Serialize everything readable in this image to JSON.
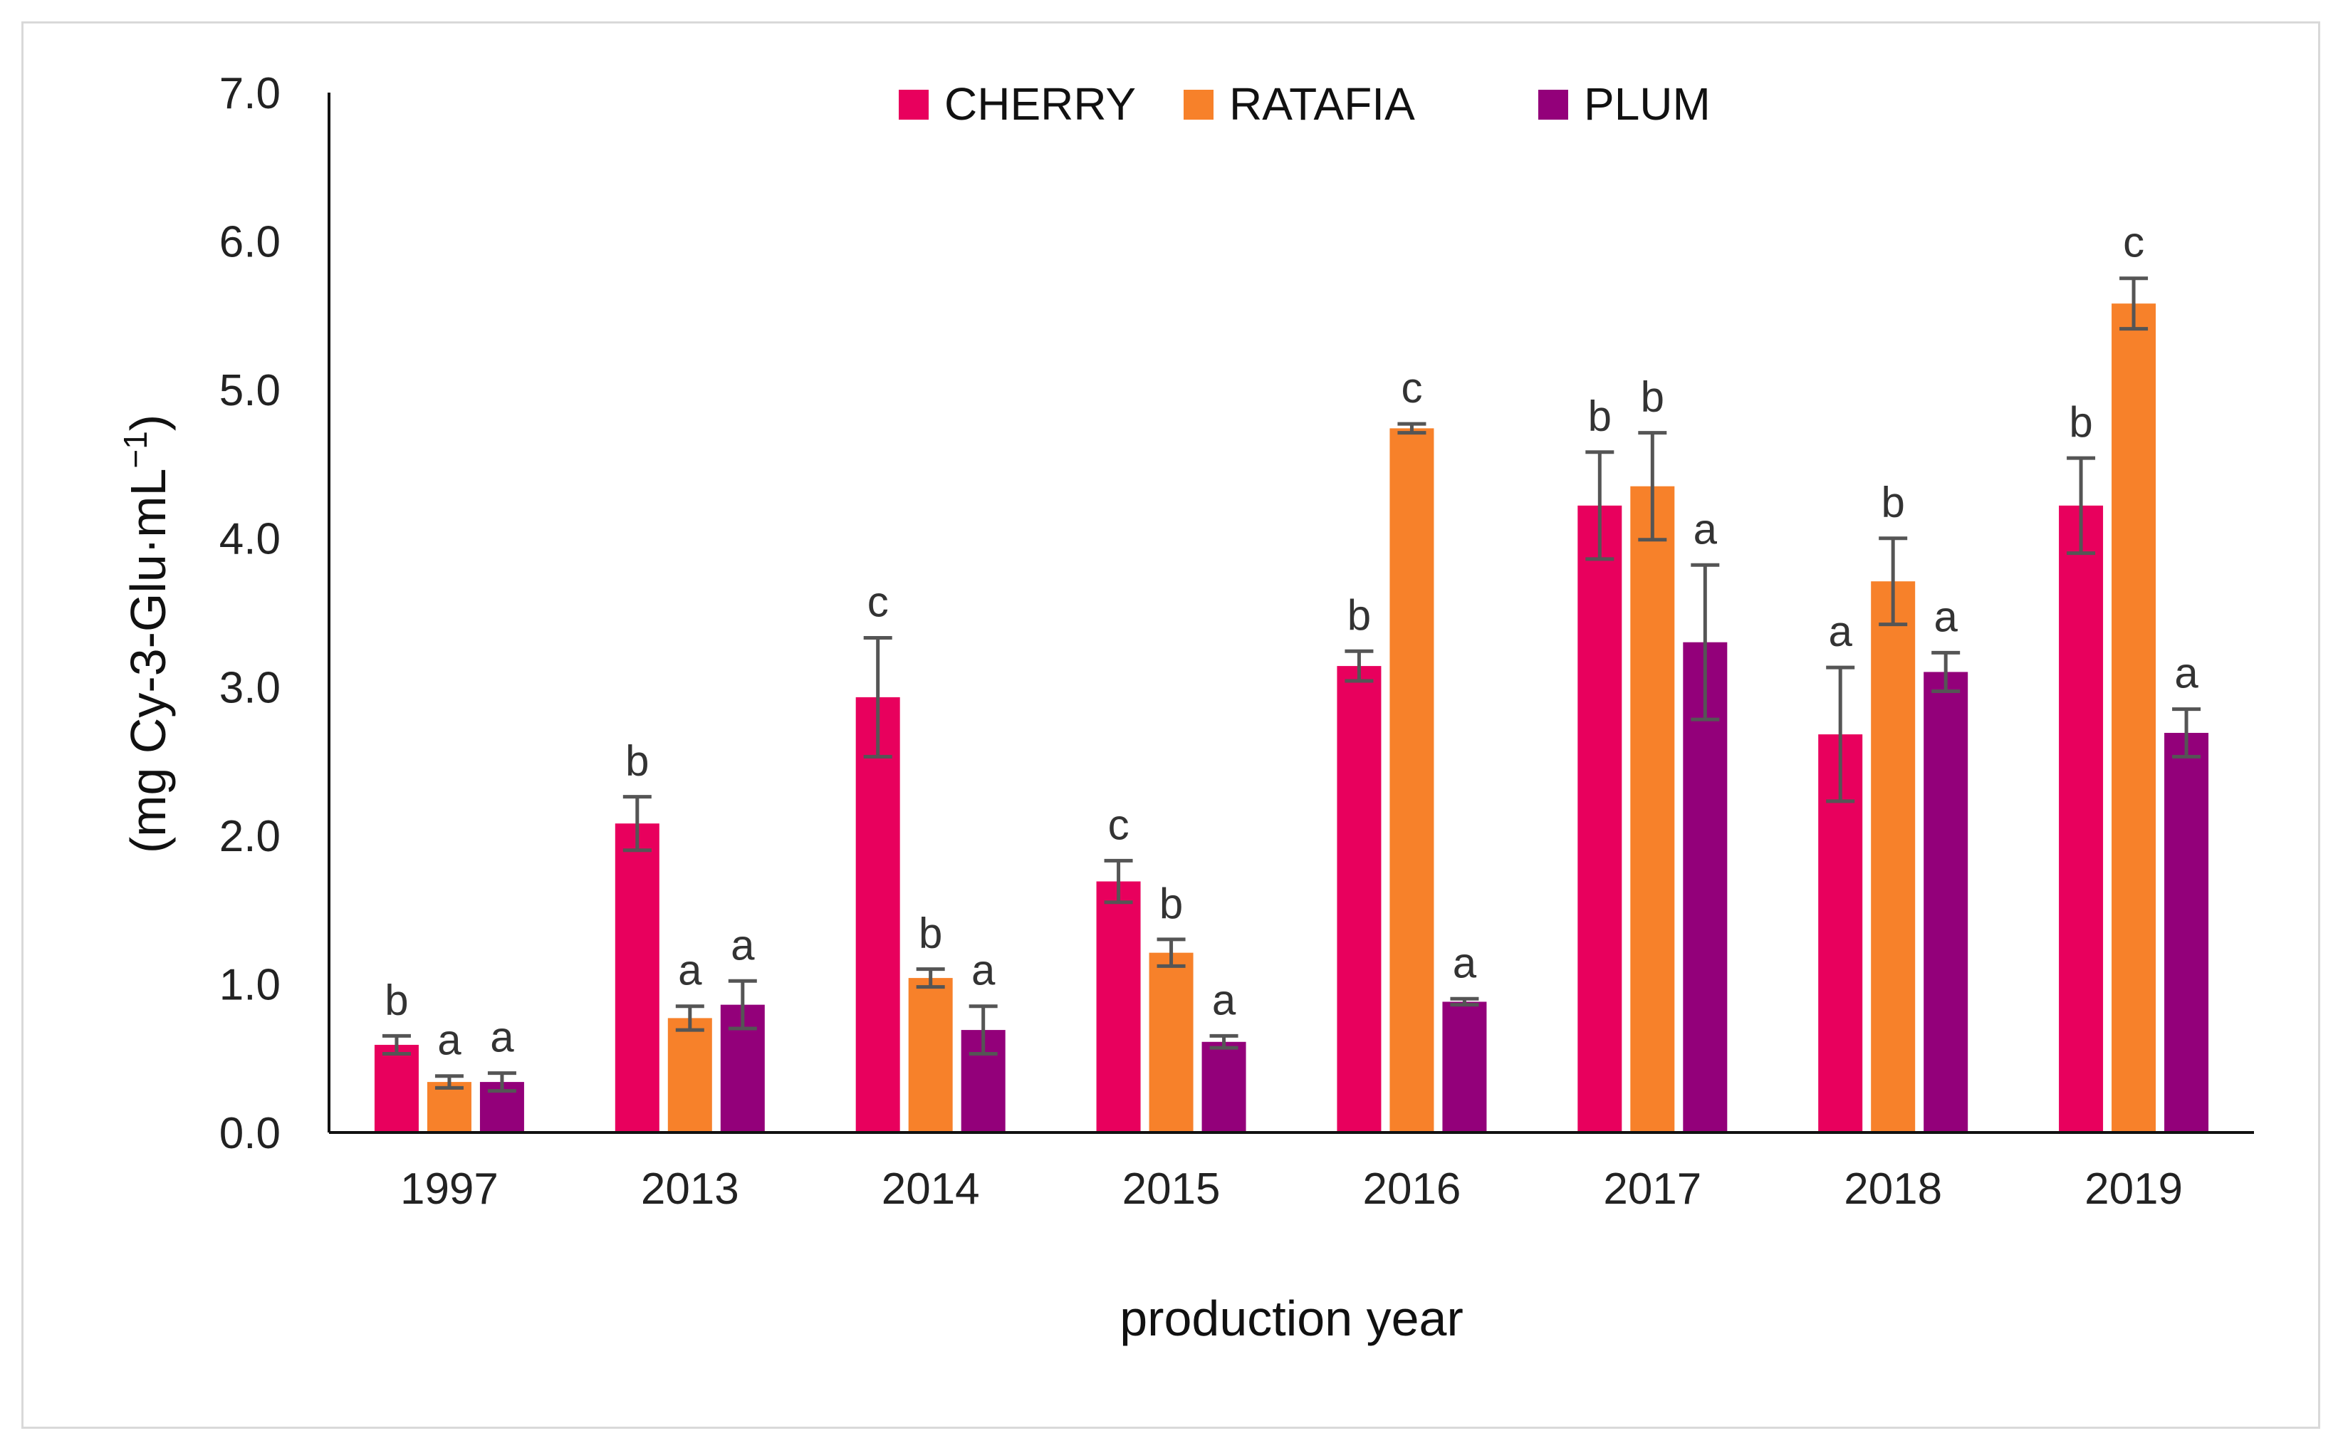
{
  "chart_data": {
    "type": "bar",
    "title": "",
    "xlabel": "production year",
    "ylabel_main": "(mg Cy-3-Glu·mL",
    "ylabel_sup": "−1",
    "ylabel_close": ")",
    "ylim": [
      0,
      7
    ],
    "yticks": [
      0,
      1,
      2,
      3,
      4,
      5,
      6,
      7
    ],
    "ytick_labels": [
      "0.0",
      "1.0",
      "2.0",
      "3.0",
      "4.0",
      "5.0",
      "6.0",
      "7.0"
    ],
    "grid": false,
    "legend_position": "top-center",
    "categories": [
      "1997",
      "2013",
      "2014",
      "2015",
      "2016",
      "2017",
      "2018",
      "2019"
    ],
    "series": [
      {
        "name": "CHERRY",
        "color": "#e8005d",
        "values": [
          0.59,
          2.08,
          2.93,
          1.69,
          3.14,
          4.22,
          2.68,
          4.22
        ],
        "errors": [
          0.06,
          0.18,
          0.4,
          0.14,
          0.1,
          0.36,
          0.45,
          0.32
        ],
        "labels": [
          "b",
          "b",
          "c",
          "c",
          "b",
          "b",
          "a",
          "b"
        ]
      },
      {
        "name": "RATAFIA",
        "color": "#f7812a",
        "values": [
          0.34,
          0.77,
          1.04,
          1.21,
          4.74,
          4.35,
          3.71,
          5.58
        ],
        "errors": [
          0.04,
          0.08,
          0.06,
          0.09,
          0.03,
          0.36,
          0.29,
          0.17
        ],
        "labels": [
          "a",
          "a",
          "b",
          "b",
          "c",
          "b",
          "b",
          "c"
        ]
      },
      {
        "name": "PLUM",
        "color": "#93007a",
        "values": [
          0.34,
          0.86,
          0.69,
          0.61,
          0.88,
          3.3,
          3.1,
          2.69
        ],
        "errors": [
          0.06,
          0.16,
          0.16,
          0.04,
          0.02,
          0.52,
          0.13,
          0.16
        ],
        "labels": [
          "a",
          "a",
          "a",
          "a",
          "a",
          "a",
          "a",
          "a"
        ]
      }
    ]
  }
}
